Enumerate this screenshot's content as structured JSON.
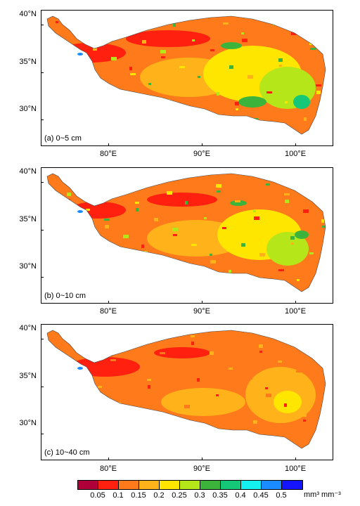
{
  "panels": [
    {
      "label": "(a)  0~5 cm",
      "style": "wet"
    },
    {
      "label": "(b)  0~10 cm",
      "style": "mid"
    },
    {
      "label": "(c)  10~40 cm",
      "style": "dry"
    }
  ],
  "axes": {
    "y_ticks": [
      "40°N",
      "35°N",
      "30°N"
    ],
    "x_ticks": [
      "80°E",
      "90°E",
      "100°E"
    ]
  },
  "legend": {
    "colors": [
      "#b0003a",
      "#ff2010",
      "#ff7a1a",
      "#ffb21a",
      "#ffe600",
      "#b4e61a",
      "#3cb43c",
      "#14c878",
      "#14f0f0",
      "#1a8cff",
      "#1414ff"
    ],
    "labels": [
      "0.05",
      "0.1",
      "0.15",
      "0.2",
      "0.25",
      "0.3",
      "0.35",
      "0.4",
      "0.45",
      "0.5"
    ],
    "unit": "mm³ mm⁻³"
  }
}
